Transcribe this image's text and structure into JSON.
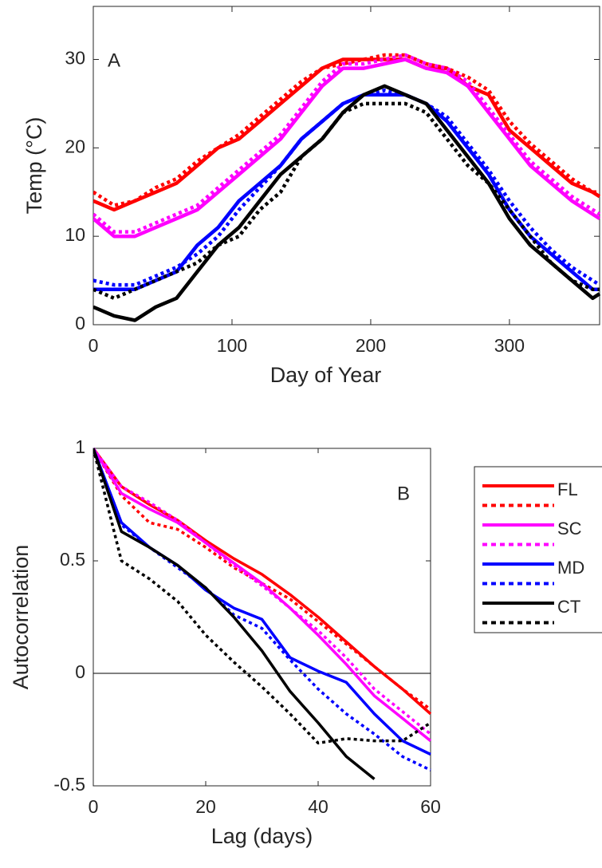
{
  "chart_data": [
    {
      "type": "line",
      "panel_label": "A",
      "x_label": "Day of Year",
      "y_label": "Temp (°C)",
      "x": [
        0,
        15,
        30,
        45,
        60,
        75,
        90,
        105,
        120,
        135,
        150,
        165,
        180,
        195,
        210,
        225,
        240,
        255,
        270,
        285,
        300,
        315,
        330,
        345,
        360,
        365
      ],
      "series": [
        {
          "name": "FL",
          "color": "#ff0000",
          "style": "solid",
          "values": [
            14,
            13,
            14,
            15,
            16,
            18,
            20,
            21,
            23,
            25,
            27,
            29,
            30,
            30,
            30,
            30,
            29,
            29,
            27,
            26,
            22,
            20,
            18,
            16,
            15,
            14.5
          ]
        },
        {
          "color": "#ff0000",
          "style": "dotted",
          "values": [
            15,
            13.5,
            14,
            15.5,
            16.5,
            18.5,
            20,
            21.5,
            23.5,
            25.5,
            27.5,
            29,
            29.5,
            30,
            30.5,
            30.5,
            29.5,
            29,
            28,
            26.5,
            23,
            20.5,
            18.5,
            16.5,
            15,
            15
          ]
        },
        {
          "name": "SC",
          "color": "#ff00ff",
          "style": "solid",
          "values": [
            12,
            10,
            10,
            11,
            12,
            13,
            15,
            17,
            19,
            21,
            24,
            27,
            29,
            29,
            29.5,
            30,
            29,
            28.5,
            27,
            24,
            21,
            18,
            16,
            14,
            12.5,
            12
          ]
        },
        {
          "color": "#ff00ff",
          "style": "dotted",
          "values": [
            12.5,
            10.5,
            10.5,
            11.5,
            12.5,
            13.5,
            15.5,
            17.5,
            19.5,
            21.5,
            24.5,
            27.5,
            29.5,
            29.5,
            30,
            30.5,
            29.5,
            29,
            27.5,
            24.5,
            21.5,
            18.5,
            16.5,
            14.5,
            13,
            12.5
          ]
        },
        {
          "name": "MD",
          "color": "#0000ff",
          "style": "solid",
          "values": [
            4,
            4,
            4,
            5,
            6,
            9,
            11,
            14,
            16,
            18,
            21,
            23,
            25,
            26,
            26,
            26,
            25,
            23,
            20,
            17,
            13,
            10,
            8,
            6,
            4,
            4
          ]
        },
        {
          "color": "#0000ff",
          "style": "dotted",
          "values": [
            5,
            4.5,
            4.5,
            5.5,
            6.5,
            8,
            10,
            13,
            15.5,
            18,
            21,
            23,
            25,
            26,
            26.5,
            26,
            25,
            23.5,
            20.5,
            17.5,
            14,
            11,
            8.5,
            6.5,
            5,
            4.5
          ]
        },
        {
          "name": "CT",
          "color": "#000000",
          "style": "solid",
          "values": [
            2,
            1,
            0.5,
            2,
            3,
            6,
            9,
            11,
            14,
            17,
            19,
            21,
            24,
            26,
            27,
            26,
            25,
            22,
            19,
            16,
            12,
            9,
            7,
            5,
            3,
            3.5
          ]
        },
        {
          "color": "#000000",
          "style": "dotted",
          "values": [
            4,
            3,
            4,
            5,
            6,
            7,
            9,
            10,
            13,
            15,
            19,
            21,
            24,
            25,
            25,
            25,
            24,
            21,
            18,
            16,
            13,
            10,
            7,
            5,
            4,
            4
          ]
        }
      ],
      "xlim": [
        0,
        365
      ],
      "xticks": [
        0,
        100,
        200,
        300
      ],
      "ylim": [
        0,
        36
      ],
      "yticks": [
        0,
        10,
        20,
        30
      ]
    },
    {
      "type": "line",
      "panel_label": "B",
      "x_label": "Lag (days)",
      "y_label": "Autocorrelation",
      "x": [
        0,
        5,
        10,
        15,
        20,
        25,
        30,
        35,
        40,
        45,
        50,
        55,
        60
      ],
      "series": [
        {
          "name": "FL",
          "color": "#ff0000",
          "style": "solid",
          "values": [
            1,
            0.83,
            0.75,
            0.68,
            0.59,
            0.51,
            0.44,
            0.35,
            0.25,
            0.14,
            0.03,
            -0.07,
            -0.18
          ]
        },
        {
          "color": "#ff0000",
          "style": "dotted",
          "values": [
            1,
            0.79,
            0.67,
            0.64,
            0.56,
            0.47,
            0.4,
            0.33,
            0.23,
            0.13,
            0.03,
            -0.07,
            -0.16
          ]
        },
        {
          "name": "SC",
          "color": "#ff00ff",
          "style": "solid",
          "values": [
            1,
            0.8,
            0.73,
            0.67,
            0.58,
            0.49,
            0.4,
            0.29,
            0.17,
            0.04,
            -0.1,
            -0.2,
            -0.3
          ]
        },
        {
          "color": "#ff00ff",
          "style": "dotted",
          "values": [
            1,
            0.83,
            0.76,
            0.68,
            0.58,
            0.48,
            0.39,
            0.29,
            0.19,
            0.07,
            -0.07,
            -0.17,
            -0.27
          ]
        },
        {
          "name": "MD",
          "color": "#0000ff",
          "style": "solid",
          "values": [
            1,
            0.67,
            0.56,
            0.48,
            0.37,
            0.29,
            0.24,
            0.07,
            0.01,
            -0.04,
            -0.18,
            -0.3,
            -0.36
          ]
        },
        {
          "color": "#0000ff",
          "style": "dotted",
          "values": [
            1,
            0.66,
            0.56,
            0.47,
            0.38,
            0.26,
            0.2,
            0.06,
            -0.07,
            -0.18,
            -0.27,
            -0.37,
            -0.43
          ]
        },
        {
          "name": "CT",
          "color": "#000000",
          "style": "solid",
          "values": [
            1,
            0.63,
            0.56,
            0.48,
            0.38,
            0.25,
            0.1,
            -0.08,
            -0.22,
            -0.37,
            -0.47,
            null,
            null
          ]
        },
        {
          "color": "#000000",
          "style": "dotted",
          "values": [
            1,
            0.5,
            0.42,
            0.32,
            0.17,
            0.05,
            -0.06,
            -0.18,
            -0.31,
            -0.29,
            -0.3,
            -0.3,
            -0.22
          ]
        }
      ],
      "reference_line": 0,
      "legend": "outside right",
      "xlim": [
        0,
        60
      ],
      "xticks": [
        0,
        20,
        40,
        60
      ],
      "ylim": [
        -0.5,
        1
      ],
      "yticks": [
        -0.5,
        0,
        0.5,
        1
      ]
    }
  ]
}
